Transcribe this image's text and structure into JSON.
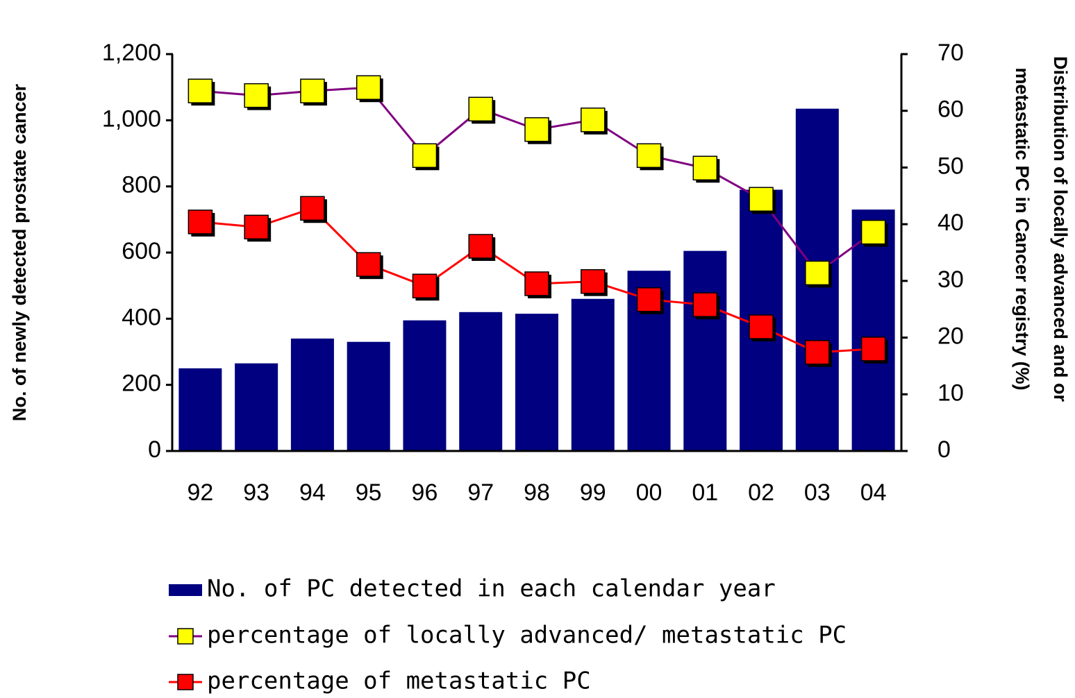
{
  "chart_data": {
    "type": "bar_line",
    "ylabel": "No. of newly detected prostate cancer",
    "y2label": [
      "Distribution of locally advanced and or",
      "metastatic PC in Cancer registry (%)"
    ],
    "categories": [
      "92",
      "93",
      "94",
      "95",
      "96",
      "97",
      "98",
      "99",
      "00",
      "01",
      "02",
      "03",
      "04"
    ],
    "series": [
      {
        "name": "No. of PC detected in each calendar year",
        "type": "bar",
        "color": "#000080",
        "axis": "y",
        "values": [
          250,
          265,
          340,
          330,
          395,
          420,
          415,
          460,
          545,
          605,
          790,
          1035,
          730
        ]
      },
      {
        "name": "percentage of locally advanced/ metastatic PC",
        "type": "line",
        "color": "#800080",
        "marker_color": "#ffff00",
        "axis": "y2",
        "values": [
          63.5,
          62.7,
          63.5,
          64.1,
          52.1,
          60.3,
          56.7,
          58.4,
          52.1,
          49.9,
          44.4,
          31.4,
          38.6
        ]
      },
      {
        "name": "percentage of metastatic PC",
        "type": "line",
        "color": "#ff0000",
        "marker_color": "#ff0000",
        "axis": "y2",
        "values": [
          40.4,
          39.5,
          42.8,
          32.9,
          29.1,
          36.1,
          29.5,
          29.9,
          26.7,
          25.8,
          21.9,
          17.4,
          18.0
        ]
      }
    ],
    "ylim": [
      0,
      1200
    ],
    "yticks": [
      0,
      200,
      400,
      600,
      800,
      {
        "value": 1000,
        "label": "1,000"
      },
      {
        "value": 1200,
        "label": "1,200"
      }
    ],
    "y2lim": [
      0,
      70
    ],
    "y2ticks": [
      0,
      10,
      20,
      30,
      40,
      50,
      60,
      70
    ]
  }
}
